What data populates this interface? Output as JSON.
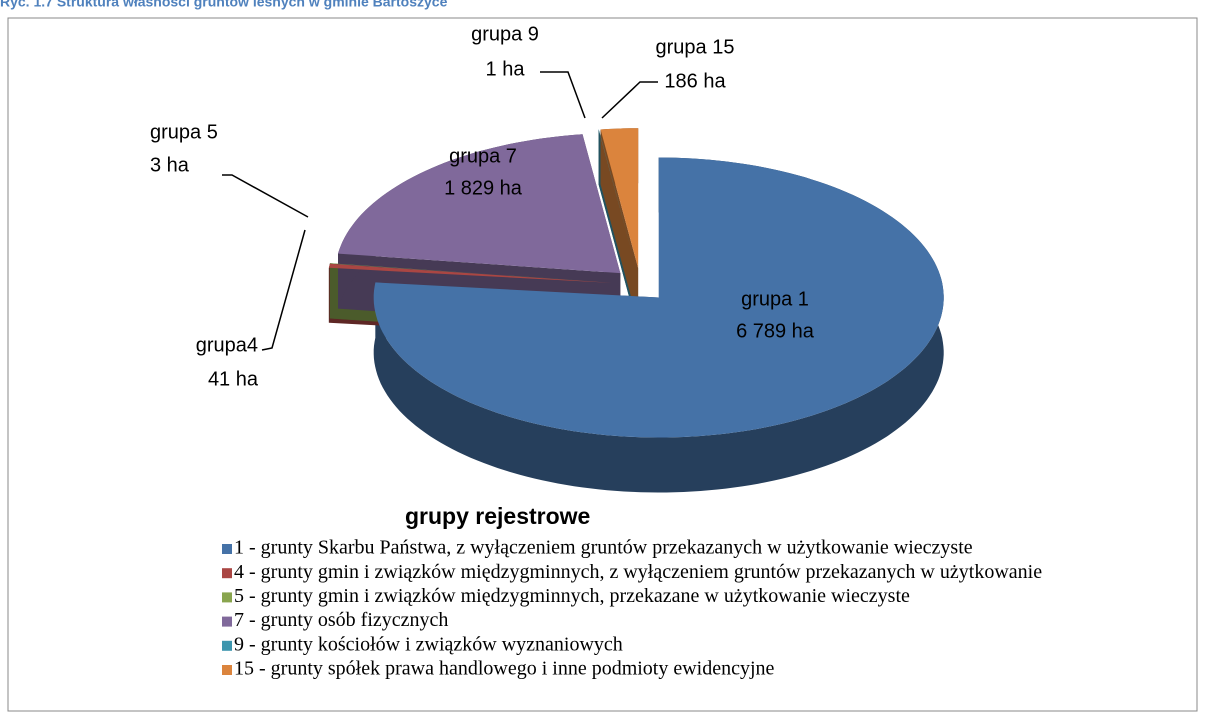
{
  "chart_data": {
    "type": "pie",
    "title": "Ryc. 1.7 Struktura własności gruntów leśnych w gminie Bartoszyce",
    "legend_title": "grupy rejestrowe",
    "labels": [
      "grupa 1",
      "grupa4",
      "grupa 5",
      "grupa 7",
      "grupa 9",
      "grupa 15"
    ],
    "values": [
      6789,
      41,
      3,
      1829,
      1,
      186
    ],
    "value_labels": [
      "6 789 ha",
      "41 ha",
      "3 ha",
      "1 829 ha",
      "1 ha",
      "186 ha"
    ],
    "colors": [
      "#4572a7",
      "#aa4643",
      "#89a54e",
      "#80699b",
      "#3d96ae",
      "#db843d"
    ],
    "legend": [
      "1 - grunty Skarbu Państwa, z wyłączeniem gruntów przekazanych w użytkowanie wieczyste",
      "4 - grunty gmin i związków międzygminnych, z wyłączeniem gruntów przekazanych w użytkowanie",
      "5 - grunty gmin i związków międzygminnych, przekazane w użytkowanie wieczyste",
      "7 - grunty osób fizycznych",
      "9 - grunty kościołów i związków wyznaniowych",
      "15 - grunty spółek prawa handlowego i inne podmioty ewidencyjne"
    ]
  }
}
